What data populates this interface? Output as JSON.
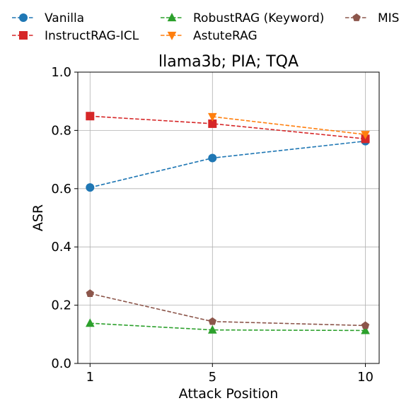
{
  "chart_data": {
    "type": "line",
    "title": "llama3b; PIA; TQA",
    "xlabel": "Attack Position",
    "ylabel": "ASR",
    "x_ticks": [
      1,
      5,
      10
    ],
    "x_tick_labels": [
      "1",
      "5",
      "10"
    ],
    "xlim": [
      0.6,
      10.45
    ],
    "ylim": [
      0.0,
      1.0
    ],
    "y_ticks": [
      0.0,
      0.2,
      0.4,
      0.6,
      0.8,
      1.0
    ],
    "y_tick_labels": [
      "0.0",
      "0.2",
      "0.4",
      "0.6",
      "0.8",
      "1.0"
    ],
    "grid": true,
    "legend_placement": "top, above plot",
    "series": [
      {
        "name": "Vanilla",
        "color": "#1f77b4",
        "marker": "circle",
        "x": [
          1,
          5,
          10
        ],
        "y": [
          0.604,
          0.705,
          0.763
        ]
      },
      {
        "name": "InstructRAG-ICL",
        "color": "#d62728",
        "marker": "square",
        "x": [
          1,
          5,
          10
        ],
        "y": [
          0.849,
          0.823,
          0.771
        ]
      },
      {
        "name": "RobustRAG (Keyword)",
        "color": "#2ca02c",
        "marker": "triangle-up",
        "x": [
          1,
          5,
          10
        ],
        "y": [
          0.138,
          0.115,
          0.113
        ]
      },
      {
        "name": "AstuteRAG",
        "color": "#ff7f0e",
        "marker": "triangle-down",
        "x": [
          5,
          10
        ],
        "y": [
          0.847,
          0.786
        ]
      },
      {
        "name": "MIS",
        "color": "#8c564b",
        "marker": "pentagon",
        "x": [
          1,
          5,
          10
        ],
        "y": [
          0.24,
          0.144,
          0.13
        ]
      }
    ]
  }
}
